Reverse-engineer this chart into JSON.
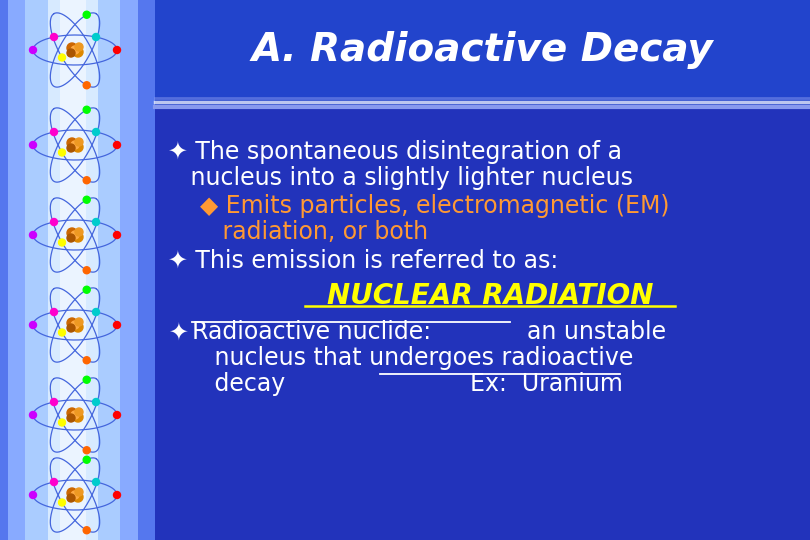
{
  "title": "A. Radioactive Decay",
  "title_color": "#FFFFFF",
  "title_bg_color": "#2244CC",
  "main_bg_color": "#2233BB",
  "separator_color": "#AABBFF",
  "bullet1_line1": "✦ The spontaneous disintegration of a",
  "bullet1_line2": "   nucleus into a slightly lighter nucleus",
  "sub_bullet_line1": "  ◆ Emits particles, electromagnetic (EM)",
  "sub_bullet_line2": "     radiation, or both",
  "bullet2_text": "✦ This emission is referred to as:",
  "nuclear_text": "NUCLEAR RADIATION",
  "nuclear_color": "#FFFF00",
  "bullet3_line1_plain": "   Radioactive nuclide:  an unstable",
  "bullet3_line2": "   nucleus that undergoes radioactive",
  "bullet3_line3_a": "   decay",
  "bullet3_line3_b": "            Ex:  Uranium",
  "text_color": "#FFFFFF",
  "sub_bullet_color": "#FF9933",
  "title_font_size": 28,
  "body_font_size": 17,
  "nuclear_font_size": 20
}
